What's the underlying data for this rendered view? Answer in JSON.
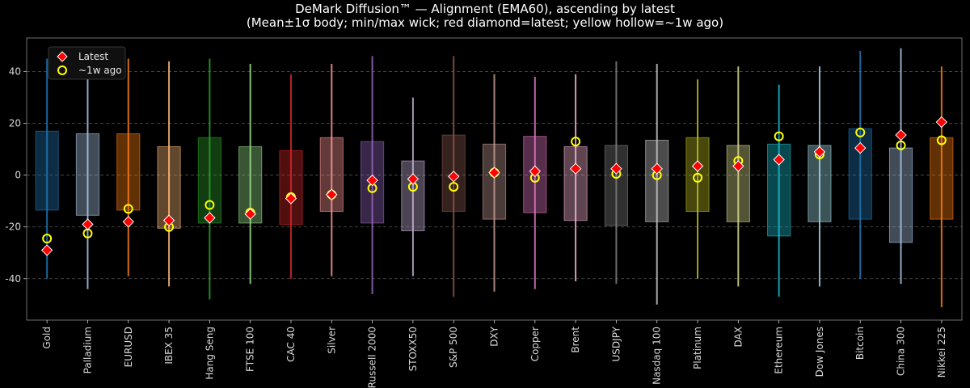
{
  "chart_data": {
    "type": "box",
    "title": "DeMark Diffusion™ — Alignment (EMA60), ascending by latest",
    "subtitle": "(Mean±1σ body; min/max wick; red diamond=latest; yellow hollow=~1w ago)",
    "xlabel": "",
    "ylabel": "",
    "ylim": [
      -56,
      53
    ],
    "yticks": [
      -40,
      -20,
      0,
      20,
      40
    ],
    "grid": true,
    "legend_position": "top-left",
    "legend": [
      {
        "label": "Latest",
        "marker": "red-diamond",
        "color": "#ff0000"
      },
      {
        "label": "~1w ago",
        "marker": "yellow-hollow-circle",
        "color": "#ffff00"
      }
    ],
    "categories": [
      "Gold",
      "Palladium",
      "EURUSD",
      "IBEX 35",
      "Hang Seng",
      "FTSE 100",
      "CAC 40",
      "Silver",
      "Russell 2000",
      "STOXX50",
      "S&P 500",
      "DXY",
      "Copper",
      "Brent",
      "USDJPY",
      "Nasdaq 100",
      "Platinum",
      "DAX",
      "Ethereum",
      "Dow Jones",
      "Bitcoin",
      "China 300",
      "Nikkei 225"
    ],
    "colors": [
      "#1f77b4",
      "#aec7e8",
      "#ff7f0e",
      "#ffbb78",
      "#2ca02c",
      "#98df8a",
      "#d62728",
      "#ff9896",
      "#9467bd",
      "#c5b0d5",
      "#8c564b",
      "#c49c94",
      "#e377c2",
      "#f7b6d2",
      "#7f7f7f",
      "#c7c7c7",
      "#bcbd22",
      "#dbdb8d",
      "#17becf",
      "#9edae5",
      "#1f77b4",
      "#aec7e8",
      "#ff7f0e"
    ],
    "mean_minus_sd": [
      -13.5,
      -15.5,
      -13.5,
      -20.5,
      -18.5,
      -18.5,
      -19,
      -14,
      -18.5,
      -21.5,
      -14,
      -17,
      -14.5,
      -17.5,
      -19.5,
      -18,
      -14,
      -18,
      -23.5,
      -18,
      -17,
      -26,
      -17
    ],
    "mean_plus_sd": [
      17,
      16,
      16,
      11,
      14.5,
      11,
      9.5,
      14.5,
      13,
      5.5,
      15.5,
      12,
      15,
      11,
      11.5,
      13.5,
      14.5,
      11.5,
      12,
      11.5,
      18,
      10.5,
      14.5
    ],
    "min": [
      -40,
      -44,
      -39,
      -43,
      -48,
      -42,
      -40,
      -39,
      -46,
      -39,
      -47,
      -45,
      -44,
      -41,
      -42,
      -50,
      -40,
      -43,
      -47,
      -43,
      -40,
      -42,
      -51
    ],
    "max": [
      45,
      45,
      45,
      44,
      45,
      43,
      39,
      43,
      46,
      30,
      46,
      39,
      38,
      39,
      44,
      43,
      37,
      42,
      35,
      42,
      48,
      49,
      42
    ],
    "latest": [
      -29,
      -19,
      -18,
      -17.5,
      -16.5,
      -15,
      -9,
      -7.5,
      -2,
      -1.5,
      -0.5,
      1,
      1.5,
      2.5,
      2.5,
      2.5,
      3.5,
      3.5,
      6,
      9,
      10.5,
      15.5,
      20.5
    ],
    "week_ago": [
      -24.5,
      -22.5,
      -13,
      -20,
      -11.5,
      -14.5,
      -8.5,
      -7.5,
      -5,
      -4.5,
      -4.5,
      1,
      -1,
      13,
      0.5,
      0,
      -1,
      5.5,
      15,
      8,
      16.5,
      11.5,
      13.5
    ]
  }
}
